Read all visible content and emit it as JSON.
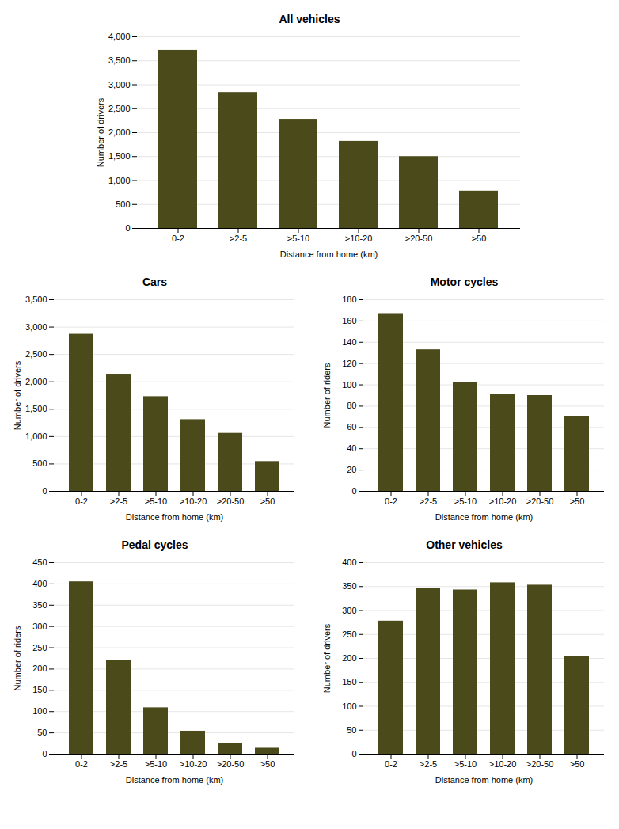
{
  "chart_data": [
    {
      "type": "bar",
      "title": "All vehicles",
      "xlabel": "Distance from home (km)",
      "ylabel": "Number of drivers",
      "categories": [
        "0-2",
        ">2-5",
        ">5-10",
        ">10-20",
        ">20-50",
        ">50"
      ],
      "values": [
        3720,
        2840,
        2280,
        1820,
        1500,
        780
      ],
      "color": "#4a4a1a",
      "ylim": [
        0,
        4000
      ],
      "yticks": [
        0,
        500,
        {
          "value": 1000,
          "label": "1,000"
        },
        {
          "value": 1500,
          "label": "1,500"
        },
        {
          "value": 2000,
          "label": "2,000"
        },
        {
          "value": 2500,
          "label": "2,500"
        },
        {
          "value": 3000,
          "label": "3,000"
        },
        {
          "value": 3500,
          "label": "3,500"
        },
        {
          "value": 4000,
          "label": "4,000"
        }
      ],
      "grid": true
    },
    {
      "type": "bar",
      "title": "Cars",
      "xlabel": "Distance from home (km)",
      "ylabel": "Number of drivers",
      "categories": [
        "0-2",
        ">2-5",
        ">5-10",
        ">10-20",
        ">20-50",
        ">50"
      ],
      "values": [
        2870,
        2140,
        1730,
        1310,
        1060,
        545
      ],
      "color": "#4a4a1a",
      "ylim": [
        0,
        3500
      ],
      "yticks": [
        0,
        500,
        {
          "value": 1000,
          "label": "1,000"
        },
        {
          "value": 1500,
          "label": "1,500"
        },
        {
          "value": 2000,
          "label": "2,000"
        },
        {
          "value": 2500,
          "label": "2,500"
        },
        {
          "value": 3000,
          "label": "3,000"
        },
        {
          "value": 3500,
          "label": "3,500"
        }
      ],
      "grid": true
    },
    {
      "type": "bar",
      "title": "Motor cycles",
      "xlabel": "Distance from home (km)",
      "ylabel": "Number of riders",
      "categories": [
        "0-2",
        ">2-5",
        ">5-10",
        ">10-20",
        ">20-50",
        ">50"
      ],
      "values": [
        167,
        133,
        102,
        91,
        90,
        70
      ],
      "color": "#4a4a1a",
      "ylim": [
        0,
        180
      ],
      "yticks": [
        0,
        20,
        40,
        60,
        80,
        100,
        120,
        140,
        160,
        180
      ],
      "grid": true
    },
    {
      "type": "bar",
      "title": "Pedal cycles",
      "xlabel": "Distance from home (km)",
      "ylabel": "Number of riders",
      "categories": [
        "0-2",
        ">2-5",
        ">5-10",
        ">10-20",
        ">20-50",
        ">50"
      ],
      "values": [
        405,
        220,
        109,
        54,
        25,
        14
      ],
      "color": "#4a4a1a",
      "ylim": [
        0,
        450
      ],
      "yticks": [
        0,
        50,
        100,
        150,
        200,
        250,
        300,
        350,
        400,
        450
      ],
      "grid": true
    },
    {
      "type": "bar",
      "title": "Other vehicles",
      "xlabel": "Distance from home (km)",
      "ylabel": "Number of drivers",
      "categories": [
        "0-2",
        ">2-5",
        ">5-10",
        ">10-20",
        ">20-50",
        ">50"
      ],
      "values": [
        278,
        347,
        343,
        358,
        353,
        204
      ],
      "color": "#4a4a1a",
      "ylim": [
        0,
        400
      ],
      "yticks": [
        0,
        50,
        100,
        150,
        200,
        250,
        300,
        350,
        400
      ],
      "grid": true
    }
  ]
}
